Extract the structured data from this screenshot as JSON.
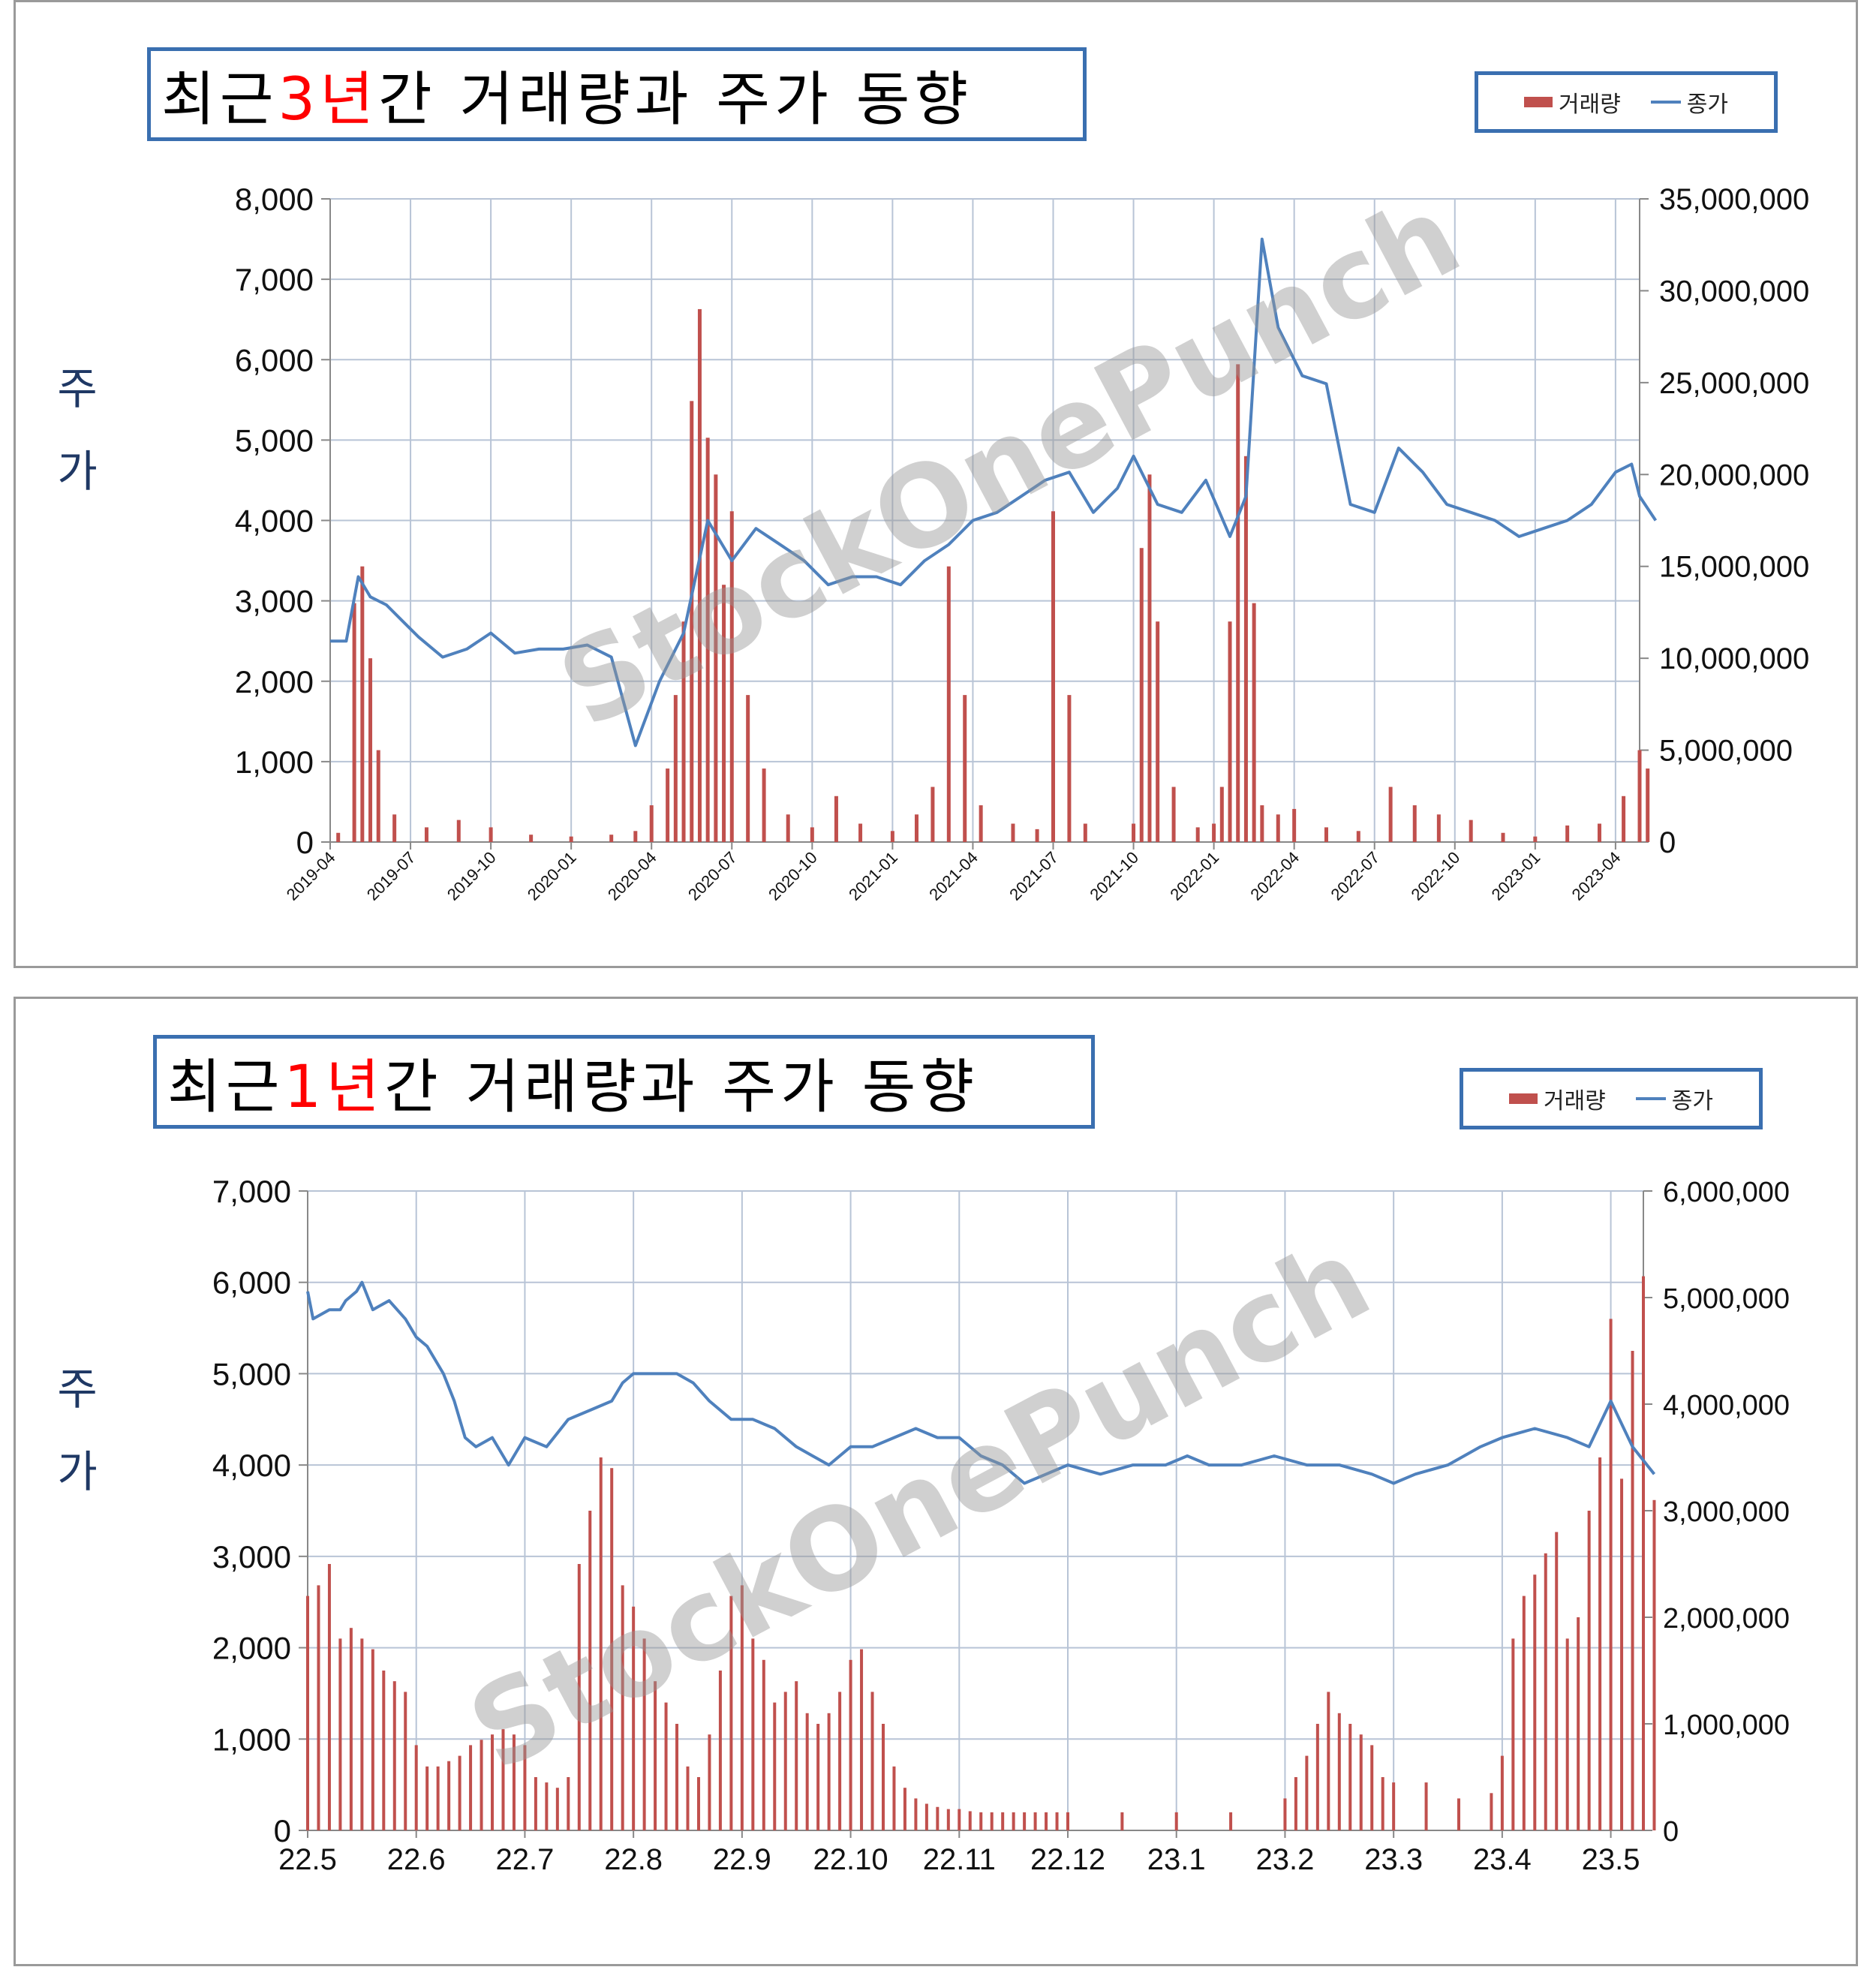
{
  "colors": {
    "bar": "#c0504d",
    "line": "#4f81bd",
    "grid": "#b8c4d6",
    "frame": "#3a6fb0",
    "highlight": "#ff0000"
  },
  "watermark": "StockOnePunch",
  "legend": {
    "volume": "거래량",
    "close": "종가"
  },
  "y_axis_label": [
    "주",
    "가"
  ],
  "top": {
    "title_pre": "최근 ",
    "title_hl": "3년",
    "title_post": "간 거래량과 주가 동향"
  },
  "bottom": {
    "title_pre": "최근 ",
    "title_hl": "1년",
    "title_post": "간 거래량과 주가 동향"
  },
  "chart_data": [
    {
      "type": "bar+line",
      "title": "최근 3년간 거래량과 주가 동향",
      "x_range": [
        "2019-04",
        "2023-05"
      ],
      "categories": [
        "2019-04",
        "2019-07",
        "2019-10",
        "2020-01",
        "2020-04",
        "2020-07",
        "2020-10",
        "2021-01",
        "2021-04",
        "2021-07",
        "2021-10",
        "2022-01",
        "2022-04",
        "2022-07",
        "2022-10",
        "2023-01",
        "2023-04"
      ],
      "ylim_left": [
        0,
        8000
      ],
      "ylim_right": [
        0,
        35000000
      ],
      "y_ticks_left": [
        "0",
        "1,000",
        "2,000",
        "3,000",
        "4,000",
        "5,000",
        "6,000",
        "7,000",
        "8,000"
      ],
      "y_ticks_right": [
        "0",
        "5,000,000",
        "10,000,000",
        "15,000,000",
        "20,000,000",
        "25,000,000",
        "30,000,000",
        "35,000,000"
      ],
      "grid": true,
      "legend_position": "top-right",
      "series": [
        {
          "name": "종가",
          "axis": "left",
          "kind": "line",
          "x": [
            0,
            0.2,
            0.35,
            0.5,
            0.7,
            0.9,
            1.1,
            1.4,
            1.7,
            2.0,
            2.3,
            2.6,
            2.9,
            3.2,
            3.5,
            3.8,
            4.1,
            4.4,
            4.7,
            5.0,
            5.3,
            5.6,
            5.9,
            6.2,
            6.5,
            6.8,
            7.1,
            7.4,
            7.7,
            8.0,
            8.3,
            8.6,
            8.9,
            9.2,
            9.5,
            9.8,
            10.0,
            10.3,
            10.6,
            10.9,
            11.2,
            11.4,
            11.6,
            11.8,
            12.1,
            12.4,
            12.7,
            13.0,
            13.3,
            13.6,
            13.9,
            14.2,
            14.5,
            14.8,
            15.1,
            15.4,
            15.7,
            16.0,
            16.2,
            16.3,
            16.5
          ],
          "y": [
            2500,
            2500,
            3300,
            3050,
            2950,
            2750,
            2550,
            2300,
            2400,
            2600,
            2350,
            2400,
            2400,
            2450,
            2300,
            1200,
            2000,
            2600,
            4000,
            3500,
            3900,
            3700,
            3500,
            3200,
            3300,
            3300,
            3200,
            3500,
            3700,
            4000,
            4100,
            4300,
            4500,
            4600,
            4100,
            4400,
            4800,
            4200,
            4100,
            4500,
            3800,
            4300,
            7500,
            6400,
            5800,
            5700,
            4200,
            4100,
            4900,
            4600,
            4200,
            4100,
            4000,
            3800,
            3900,
            4000,
            4200,
            4600,
            4700,
            4300,
            4000
          ],
          "note_y": "approx"
        },
        {
          "name": "거래량",
          "axis": "right",
          "kind": "bar",
          "x": [
            0.1,
            0.3,
            0.4,
            0.5,
            0.6,
            0.8,
            1.2,
            1.6,
            2.0,
            2.5,
            3.0,
            3.5,
            3.8,
            4.0,
            4.2,
            4.3,
            4.4,
            4.5,
            4.6,
            4.7,
            4.8,
            4.9,
            5.0,
            5.2,
            5.4,
            5.7,
            6.0,
            6.3,
            6.6,
            7.0,
            7.3,
            7.5,
            7.7,
            7.9,
            8.1,
            8.5,
            8.8,
            9.0,
            9.2,
            9.4,
            10.0,
            10.1,
            10.2,
            10.3,
            10.5,
            10.8,
            11.0,
            11.1,
            11.2,
            11.3,
            11.4,
            11.5,
            11.6,
            11.8,
            12.0,
            12.4,
            12.8,
            13.2,
            13.5,
            13.8,
            14.2,
            14.6,
            15.0,
            15.4,
            15.8,
            16.1,
            16.3,
            16.4
          ],
          "y": [
            500000,
            13000000,
            15000000,
            10000000,
            5000000,
            1500000,
            800000,
            1200000,
            800000,
            400000,
            300000,
            400000,
            600000,
            2000000,
            4000000,
            8000000,
            12000000,
            24000000,
            29000000,
            22000000,
            20000000,
            14000000,
            18000000,
            8000000,
            4000000,
            1500000,
            800000,
            2500000,
            1000000,
            600000,
            1500000,
            3000000,
            15000000,
            8000000,
            2000000,
            1000000,
            700000,
            18000000,
            8000000,
            1000000,
            1000000,
            16000000,
            20000000,
            12000000,
            3000000,
            800000,
            1000000,
            3000000,
            12000000,
            26000000,
            21000000,
            13000000,
            2000000,
            1500000,
            1800000,
            800000,
            600000,
            3000000,
            2000000,
            1500000,
            1200000,
            500000,
            300000,
            900000,
            1000000,
            2500000,
            5000000,
            4000000
          ],
          "note_y": "approx"
        }
      ]
    },
    {
      "type": "bar+line",
      "title": "최근 1년간 거래량과 주가 동향",
      "categories": [
        "22.5",
        "22.6",
        "22.7",
        "22.8",
        "22.9",
        "22.10",
        "22.11",
        "22.12",
        "23.1",
        "23.2",
        "23.3",
        "23.4",
        "23.5"
      ],
      "ylim_left": [
        0,
        7000
      ],
      "ylim_right": [
        0,
        6000000
      ],
      "y_ticks_left": [
        "0",
        "1,000",
        "2,000",
        "3,000",
        "4,000",
        "5,000",
        "6,000",
        "7,000"
      ],
      "y_ticks_right": [
        "0",
        "1,000,000",
        "2,000,000",
        "3,000,000",
        "4,000,000",
        "5,000,000",
        "6,000,000"
      ],
      "grid": true,
      "legend_position": "top-right",
      "series": [
        {
          "name": "종가",
          "axis": "left",
          "kind": "line",
          "x": [
            0,
            0.05,
            0.2,
            0.3,
            0.35,
            0.45,
            0.5,
            0.6,
            0.75,
            0.9,
            1.0,
            1.1,
            1.25,
            1.35,
            1.45,
            1.55,
            1.7,
            1.85,
            2.0,
            2.2,
            2.4,
            2.6,
            2.8,
            2.9,
            3.0,
            3.2,
            3.4,
            3.55,
            3.7,
            3.9,
            4.1,
            4.3,
            4.5,
            4.65,
            4.8,
            5.0,
            5.2,
            5.4,
            5.6,
            5.8,
            6.0,
            6.2,
            6.4,
            6.6,
            6.8,
            7.0,
            7.3,
            7.6,
            7.9,
            8.1,
            8.3,
            8.6,
            8.9,
            9.2,
            9.5,
            9.8,
            10.0,
            10.2,
            10.5,
            10.8,
            11.0,
            11.3,
            11.6,
            11.8,
            12.0,
            12.2,
            12.4
          ],
          "y": [
            5900,
            5600,
            5700,
            5700,
            5800,
            5900,
            6000,
            5700,
            5800,
            5600,
            5400,
            5300,
            5000,
            4700,
            4300,
            4200,
            4300,
            4000,
            4300,
            4200,
            4500,
            4600,
            4700,
            4900,
            5000,
            5000,
            5000,
            4900,
            4700,
            4500,
            4500,
            4400,
            4200,
            4100,
            4000,
            4200,
            4200,
            4300,
            4400,
            4300,
            4300,
            4100,
            4000,
            3800,
            3900,
            4000,
            3900,
            4000,
            4000,
            4100,
            4000,
            4000,
            4100,
            4000,
            4000,
            3900,
            3800,
            3900,
            4000,
            4200,
            4300,
            4400,
            4300,
            4200,
            4700,
            4200,
            3900
          ],
          "note_y": "approx"
        },
        {
          "name": "거래량",
          "axis": "right",
          "kind": "bar",
          "x": [
            0,
            0.1,
            0.2,
            0.3,
            0.4,
            0.5,
            0.6,
            0.7,
            0.8,
            0.9,
            1.0,
            1.1,
            1.2,
            1.3,
            1.4,
            1.5,
            1.6,
            1.7,
            1.8,
            1.9,
            2.0,
            2.1,
            2.2,
            2.3,
            2.4,
            2.5,
            2.6,
            2.7,
            2.8,
            2.9,
            3.0,
            3.1,
            3.2,
            3.3,
            3.4,
            3.5,
            3.6,
            3.7,
            3.8,
            3.9,
            4.0,
            4.1,
            4.2,
            4.3,
            4.4,
            4.5,
            4.6,
            4.7,
            4.8,
            4.9,
            5.0,
            5.1,
            5.2,
            5.3,
            5.4,
            5.5,
            5.6,
            5.7,
            5.8,
            5.9,
            6.0,
            6.1,
            6.2,
            6.3,
            6.4,
            6.5,
            6.6,
            6.7,
            6.8,
            6.9,
            7.0,
            7.5,
            8.0,
            8.5,
            9.0,
            9.1,
            9.2,
            9.3,
            9.4,
            9.5,
            9.6,
            9.7,
            9.8,
            9.9,
            10.0,
            10.3,
            10.6,
            10.9,
            11.0,
            11.1,
            11.2,
            11.3,
            11.4,
            11.5,
            11.6,
            11.7,
            11.8,
            11.9,
            12.0,
            12.1,
            12.2,
            12.3,
            12.4
          ],
          "y": [
            2200000,
            2300000,
            2500000,
            1800000,
            1900000,
            1800000,
            1700000,
            1500000,
            1400000,
            1300000,
            800000,
            600000,
            600000,
            650000,
            700000,
            800000,
            850000,
            900000,
            950000,
            900000,
            800000,
            500000,
            450000,
            400000,
            500000,
            2500000,
            3000000,
            3500000,
            3400000,
            2300000,
            2100000,
            1800000,
            1400000,
            1200000,
            1000000,
            600000,
            500000,
            900000,
            1500000,
            2200000,
            2300000,
            1800000,
            1600000,
            1200000,
            1300000,
            1400000,
            1100000,
            1000000,
            1100000,
            1300000,
            1600000,
            1700000,
            1300000,
            1000000,
            600000,
            400000,
            300000,
            250000,
            220000,
            200000,
            200000,
            180000,
            170000,
            170000,
            170000,
            170000,
            170000,
            170000,
            170000,
            170000,
            170000,
            170000,
            170000,
            170000,
            300000,
            500000,
            700000,
            1000000,
            1300000,
            1100000,
            1000000,
            900000,
            800000,
            500000,
            450000,
            450000,
            300000,
            350000,
            700000,
            1800000,
            2200000,
            2400000,
            2600000,
            2800000,
            1800000,
            2000000,
            3000000,
            3500000,
            4800000,
            3300000,
            4500000,
            5200000,
            3100000
          ],
          "note_y": "approx"
        }
      ]
    }
  ]
}
